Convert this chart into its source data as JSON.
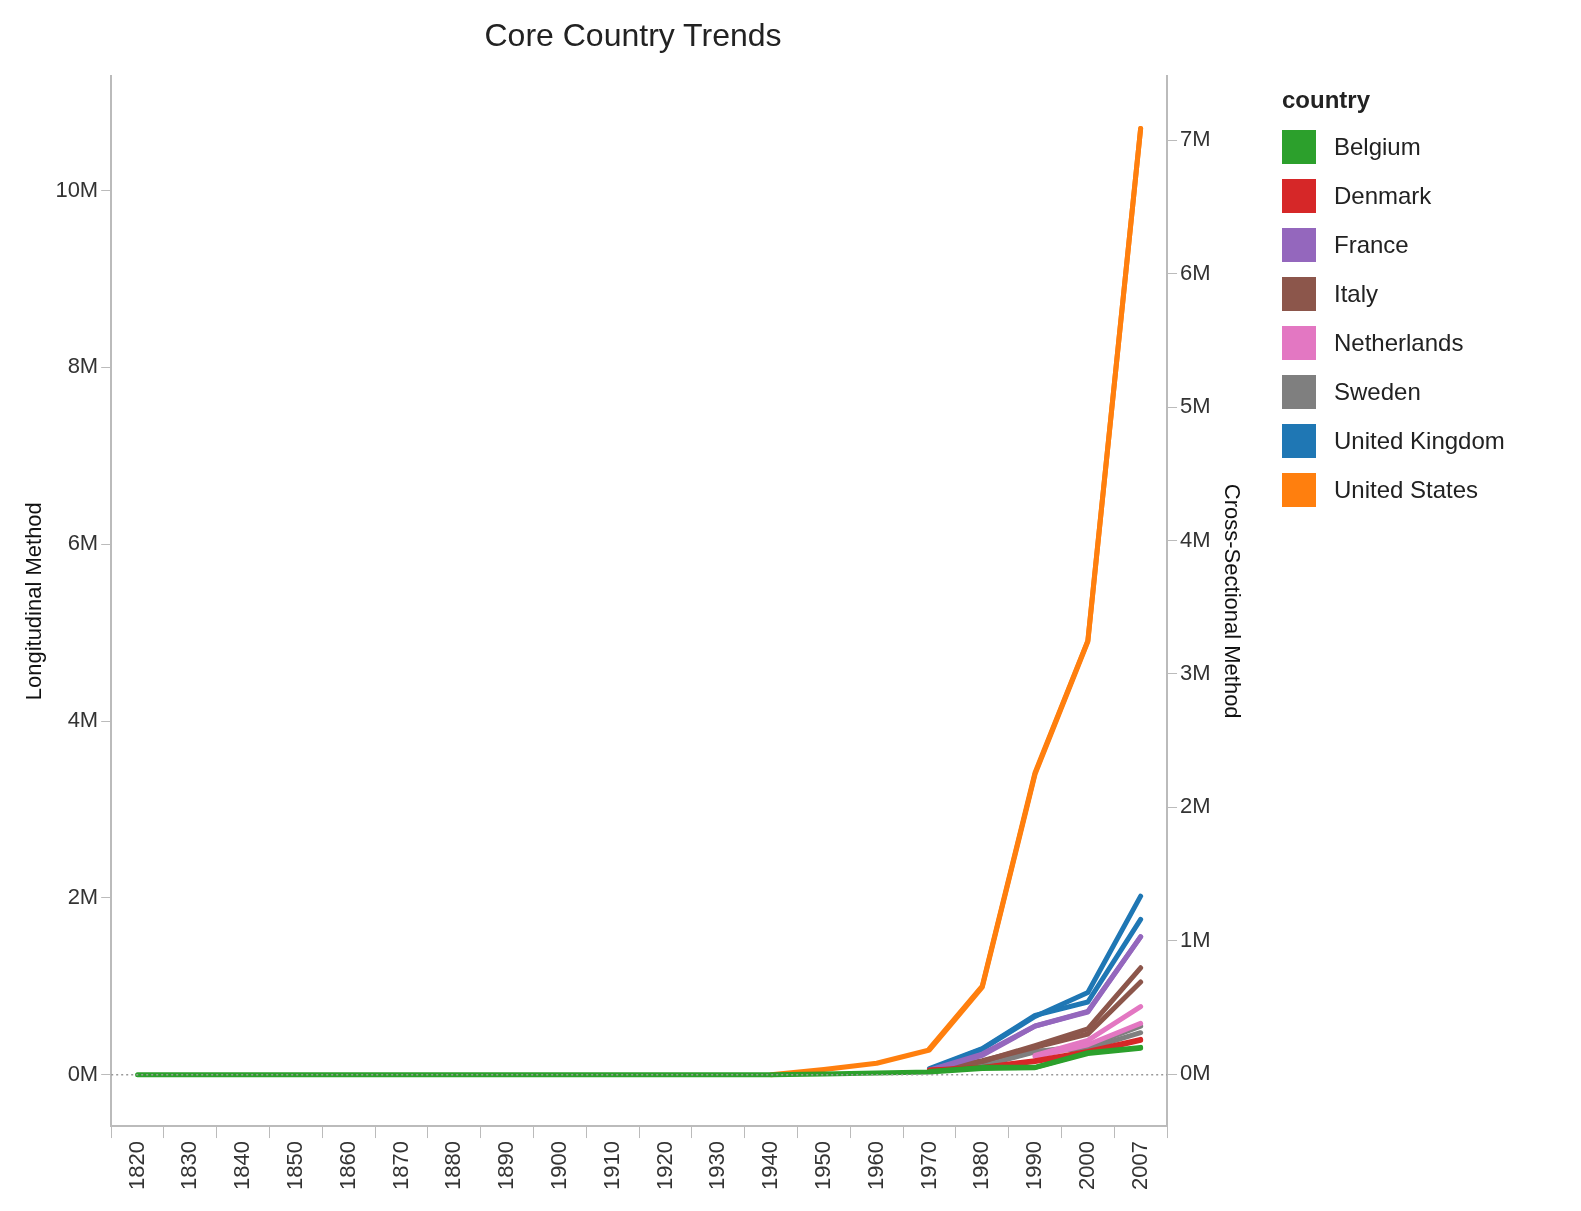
{
  "chart_data": {
    "type": "line",
    "title": "Core Country Trends",
    "ylabel": "Longitudinal Method",
    "y2label": "Cross-Sectional Method",
    "legend_title": "country",
    "categories": [
      "1820",
      "1830",
      "1840",
      "1850",
      "1860",
      "1870",
      "1880",
      "1890",
      "1900",
      "1910",
      "1920",
      "1930",
      "1940",
      "1950",
      "1960",
      "1970",
      "1980",
      "1990",
      "2000",
      "2007"
    ],
    "series": [
      {
        "name": "Belgium",
        "color": "#2ca02c",
        "values": [
          0,
          0,
          0,
          0,
          0,
          0,
          0,
          0,
          0,
          0,
          0,
          0,
          0,
          0.01,
          0.02,
          0.03,
          0.07,
          0.08,
          0.24,
          0.3
        ]
      },
      {
        "color": "#2ca02c",
        "axis": "y2",
        "values": [
          null,
          null,
          null,
          null,
          null,
          null,
          null,
          null,
          null,
          null,
          null,
          null,
          null,
          null,
          null,
          0.02,
          0.05,
          0.05,
          0.16,
          0.2
        ]
      },
      {
        "name": "Denmark",
        "color": "#d62728",
        "values": [
          null,
          null,
          null,
          null,
          null,
          null,
          null,
          null,
          null,
          null,
          null,
          null,
          null,
          null,
          null,
          0.05,
          0.08,
          0.15,
          0.25,
          0.39
        ]
      },
      {
        "color": "#d62728",
        "axis": "y2",
        "values": [
          null,
          null,
          null,
          null,
          null,
          null,
          null,
          null,
          null,
          null,
          null,
          null,
          null,
          null,
          null,
          0.03,
          0.05,
          0.1,
          0.17,
          0.26
        ]
      },
      {
        "name": "France",
        "color": "#9467bd",
        "values": [
          null,
          null,
          null,
          null,
          null,
          null,
          null,
          null,
          null,
          null,
          null,
          null,
          null,
          null,
          null,
          0.05,
          0.22,
          0.55,
          0.71,
          1.56
        ]
      },
      {
        "color": "#9467bd",
        "axis": "y2",
        "values": [
          null,
          null,
          null,
          null,
          null,
          null,
          null,
          null,
          null,
          null,
          null,
          null,
          null,
          null,
          null,
          0.03,
          0.15,
          0.36,
          0.47,
          1.03
        ]
      },
      {
        "name": "Italy",
        "color": "#8c564b",
        "values": [
          null,
          null,
          null,
          null,
          null,
          null,
          null,
          null,
          null,
          null,
          null,
          null,
          null,
          null,
          null,
          0.04,
          0.15,
          0.33,
          0.52,
          1.21
        ]
      },
      {
        "color": "#8c564b",
        "axis": "y2",
        "values": [
          null,
          null,
          null,
          null,
          null,
          null,
          null,
          null,
          null,
          null,
          null,
          null,
          null,
          null,
          null,
          0.03,
          0.1,
          0.2,
          0.3,
          0.69
        ]
      },
      {
        "name": "Netherlands",
        "color": "#e377c2",
        "values": [
          null,
          null,
          null,
          null,
          null,
          null,
          null,
          null,
          null,
          null,
          null,
          null,
          null,
          null,
          null,
          null,
          null,
          0.22,
          0.39,
          0.77
        ]
      },
      {
        "color": "#e377c2",
        "axis": "y2",
        "values": [
          null,
          null,
          null,
          null,
          null,
          null,
          null,
          null,
          null,
          null,
          null,
          null,
          null,
          null,
          null,
          null,
          null,
          0.13,
          0.22,
          0.38
        ]
      },
      {
        "name": "Sweden",
        "color": "#7f7f7f",
        "values": [
          null,
          null,
          null,
          null,
          null,
          null,
          null,
          null,
          null,
          null,
          null,
          null,
          null,
          null,
          null,
          0.05,
          0.1,
          0.26,
          0.33,
          0.55
        ]
      },
      {
        "color": "#7f7f7f",
        "axis": "y2",
        "values": [
          null,
          null,
          null,
          null,
          null,
          null,
          null,
          null,
          null,
          null,
          null,
          null,
          null,
          null,
          null,
          0.03,
          0.07,
          0.17,
          0.19,
          0.31
        ]
      },
      {
        "name": "United Kingdom",
        "color": "#1f77b4",
        "values": [
          null,
          null,
          null,
          null,
          null,
          null,
          null,
          null,
          null,
          null,
          null,
          null,
          null,
          null,
          null,
          0.06,
          0.29,
          0.66,
          0.93,
          2.02
        ]
      },
      {
        "color": "#1f77b4",
        "axis": "y2",
        "values": [
          null,
          null,
          null,
          null,
          null,
          null,
          null,
          null,
          null,
          null,
          null,
          null,
          null,
          null,
          null,
          0.04,
          0.19,
          0.44,
          0.54,
          1.16
        ]
      },
      {
        "name": "United States",
        "color": "#ff7f0e",
        "values": [
          null,
          null,
          null,
          null,
          null,
          null,
          null,
          null,
          null,
          null,
          null,
          null,
          0,
          0.06,
          0.13,
          0.28,
          0.99,
          3.4,
          4.9,
          10.7
        ]
      },
      {
        "color": "#ff7f0e",
        "axis": "y2",
        "values": [
          null,
          null,
          null,
          null,
          null,
          null,
          null,
          null,
          null,
          null,
          null,
          null,
          null,
          null,
          null,
          0.19,
          0.66,
          2.26,
          3.25,
          7.09
        ]
      }
    ],
    "ylim": [
      -0.58,
      11.29
    ],
    "yticks": [
      {
        "value": 0,
        "label": "0M"
      },
      {
        "value": 2,
        "label": "2M"
      },
      {
        "value": 4,
        "label": "4M"
      },
      {
        "value": 6,
        "label": "6M"
      },
      {
        "value": 8,
        "label": "8M"
      },
      {
        "value": 10,
        "label": "10M"
      }
    ],
    "y2lim": [
      -0.39,
      7.48
    ],
    "y2ticks": [
      {
        "value": 0,
        "label": "0M"
      },
      {
        "value": 1,
        "label": "1M"
      },
      {
        "value": 2,
        "label": "2M"
      },
      {
        "value": 3,
        "label": "3M"
      },
      {
        "value": 4,
        "label": "4M"
      },
      {
        "value": 5,
        "label": "5M"
      },
      {
        "value": 6,
        "label": "6M"
      },
      {
        "value": 7,
        "label": "7M"
      }
    ],
    "ref_lines": [
      {
        "axis": "y",
        "value": 0,
        "color": "#999999",
        "line_style": "dotted"
      }
    ],
    "grid": false,
    "legend": "right",
    "marker": "none",
    "line_style": "solid"
  }
}
